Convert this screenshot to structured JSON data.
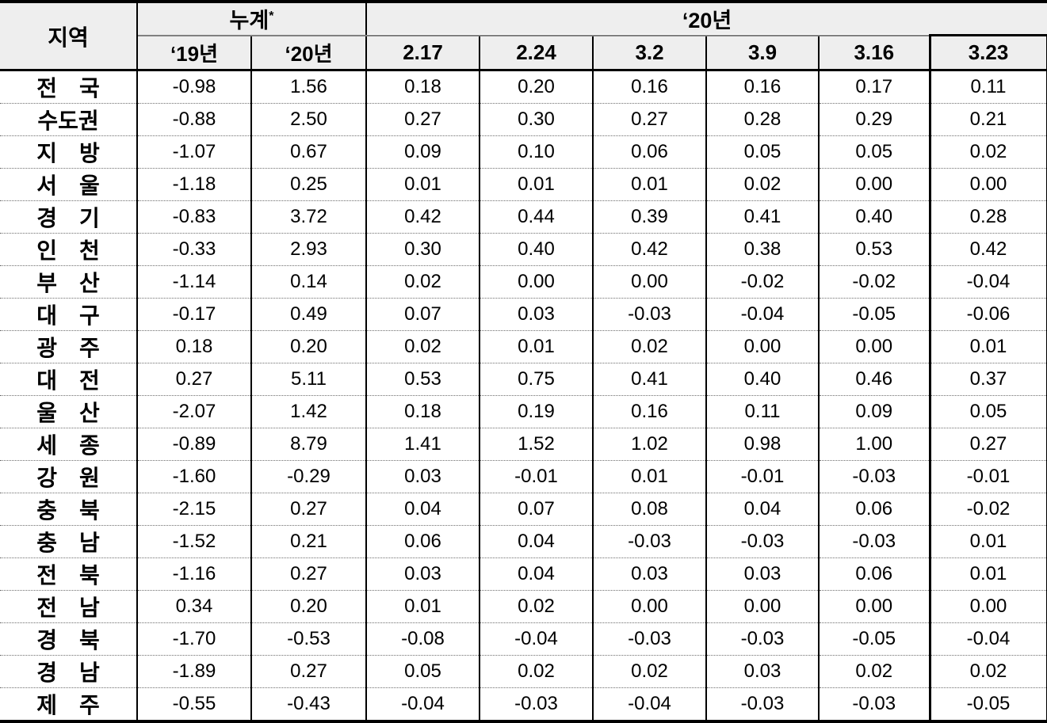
{
  "style": {
    "header_bg": "#eeeeee",
    "border_color": "#000000",
    "grid_line_color": "#808080",
    "dotted_line_color": "#6e6e6e",
    "text_color": "#000000"
  },
  "chart_data": {
    "type": "table",
    "columns": {
      "region_label": "지역",
      "group_cumulative": "누계",
      "group_cumulative_footnote": "*",
      "group_year2020": "‘20년",
      "sub_columns": [
        "‘19년",
        "‘20년",
        "2.17",
        "2.24",
        "3.2",
        "3.9",
        "3.16",
        "3.23"
      ]
    },
    "rows": [
      {
        "region": "전　국",
        "values": [
          "-0.98",
          "1.56",
          "0.18",
          "0.20",
          "0.16",
          "0.16",
          "0.17",
          "0.11"
        ]
      },
      {
        "region": "수도권",
        "values": [
          "-0.88",
          "2.50",
          "0.27",
          "0.30",
          "0.27",
          "0.28",
          "0.29",
          "0.21"
        ]
      },
      {
        "region": "지　방",
        "values": [
          "-1.07",
          "0.67",
          "0.09",
          "0.10",
          "0.06",
          "0.05",
          "0.05",
          "0.02"
        ]
      },
      {
        "region": "서　울",
        "values": [
          "-1.18",
          "0.25",
          "0.01",
          "0.01",
          "0.01",
          "0.02",
          "0.00",
          "0.00"
        ]
      },
      {
        "region": "경　기",
        "values": [
          "-0.83",
          "3.72",
          "0.42",
          "0.44",
          "0.39",
          "0.41",
          "0.40",
          "0.28"
        ]
      },
      {
        "region": "인　천",
        "values": [
          "-0.33",
          "2.93",
          "0.30",
          "0.40",
          "0.42",
          "0.38",
          "0.53",
          "0.42"
        ]
      },
      {
        "region": "부　산",
        "values": [
          "-1.14",
          "0.14",
          "0.02",
          "0.00",
          "0.00",
          "-0.02",
          "-0.02",
          "-0.04"
        ]
      },
      {
        "region": "대　구",
        "values": [
          "-0.17",
          "0.49",
          "0.07",
          "0.03",
          "-0.03",
          "-0.04",
          "-0.05",
          "-0.06"
        ]
      },
      {
        "region": "광　주",
        "values": [
          "0.18",
          "0.20",
          "0.02",
          "0.01",
          "0.02",
          "0.00",
          "0.00",
          "0.01"
        ]
      },
      {
        "region": "대　전",
        "values": [
          "0.27",
          "5.11",
          "0.53",
          "0.75",
          "0.41",
          "0.40",
          "0.46",
          "0.37"
        ]
      },
      {
        "region": "울　산",
        "values": [
          "-2.07",
          "1.42",
          "0.18",
          "0.19",
          "0.16",
          "0.11",
          "0.09",
          "0.05"
        ]
      },
      {
        "region": "세　종",
        "values": [
          "-0.89",
          "8.79",
          "1.41",
          "1.52",
          "1.02",
          "0.98",
          "1.00",
          "0.27"
        ]
      },
      {
        "region": "강　원",
        "values": [
          "-1.60",
          "-0.29",
          "0.03",
          "-0.01",
          "0.01",
          "-0.01",
          "-0.03",
          "-0.01"
        ]
      },
      {
        "region": "충　북",
        "values": [
          "-2.15",
          "0.27",
          "0.04",
          "0.07",
          "0.08",
          "0.04",
          "0.06",
          "-0.02"
        ]
      },
      {
        "region": "충　남",
        "values": [
          "-1.52",
          "0.21",
          "0.06",
          "0.04",
          "-0.03",
          "-0.03",
          "-0.03",
          "0.01"
        ]
      },
      {
        "region": "전　북",
        "values": [
          "-1.16",
          "0.27",
          "0.03",
          "0.04",
          "0.03",
          "0.03",
          "0.06",
          "0.01"
        ]
      },
      {
        "region": "전　남",
        "values": [
          "0.34",
          "0.20",
          "0.01",
          "0.02",
          "0.00",
          "0.00",
          "0.00",
          "0.00"
        ]
      },
      {
        "region": "경　북",
        "values": [
          "-1.70",
          "-0.53",
          "-0.08",
          "-0.04",
          "-0.03",
          "-0.03",
          "-0.05",
          "-0.04"
        ]
      },
      {
        "region": "경　남",
        "values": [
          "-1.89",
          "0.27",
          "0.05",
          "0.02",
          "0.02",
          "0.03",
          "0.02",
          "0.02"
        ]
      },
      {
        "region": "제　주",
        "values": [
          "-0.55",
          "-0.43",
          "-0.04",
          "-0.03",
          "-0.04",
          "-0.03",
          "-0.03",
          "-0.05"
        ]
      }
    ]
  }
}
